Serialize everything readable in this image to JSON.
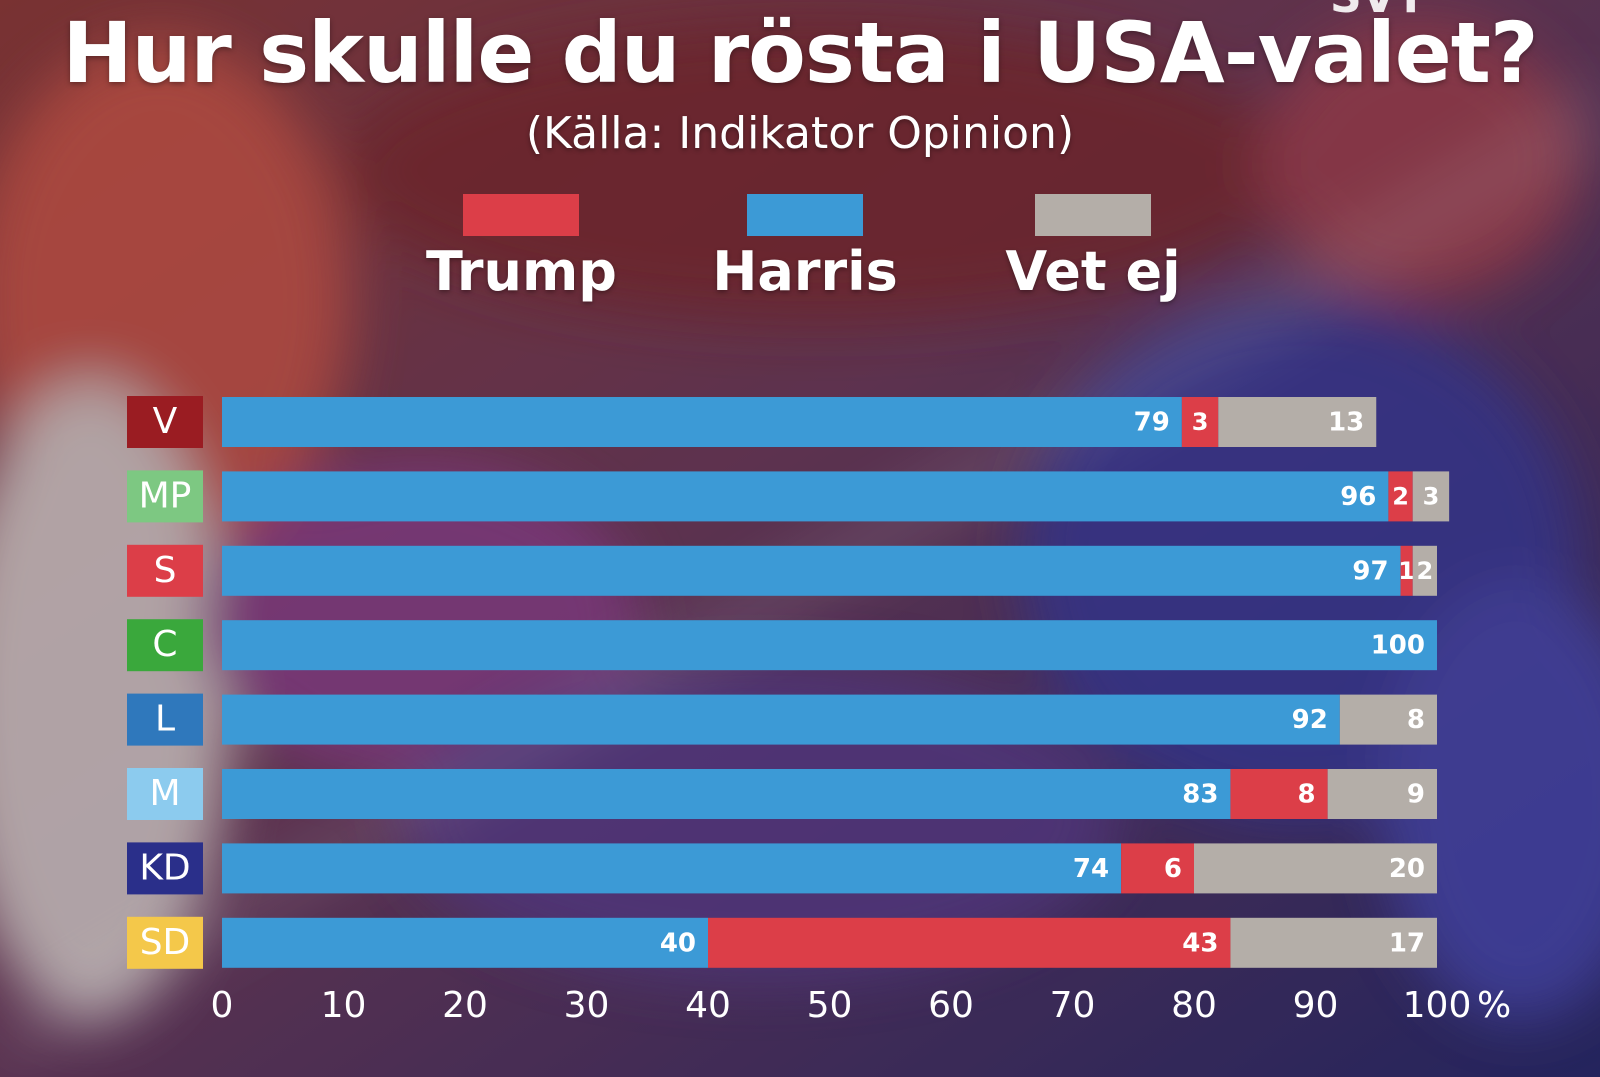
{
  "title": "Hur skulle du rösta i USA-valet?",
  "subtitle": "(Källa: Indikator Opinion)",
  "corner_text": "SVT",
  "colors": {
    "trump": "#dc3e48",
    "harris": "#3c9ad6",
    "vet_ej": "#b4aea8"
  },
  "legend": [
    {
      "label": "Trump",
      "color": "#dc3e48"
    },
    {
      "label": "Harris",
      "color": "#3c9ad6"
    },
    {
      "label": "Vet ej",
      "color": "#b4aea8"
    }
  ],
  "chart_data": {
    "type": "bar",
    "orientation": "horizontal",
    "stacked": true,
    "categories": [
      "V",
      "MP",
      "S",
      "C",
      "L",
      "M",
      "KD",
      "SD"
    ],
    "category_colors": [
      "#9a1c22",
      "#7dc882",
      "#dc3e48",
      "#3aa83c",
      "#2f78bc",
      "#8ccbee",
      "#2a2f8a",
      "#f4c84a"
    ],
    "category_text_colors": [
      "#ffffff",
      "#ffffff",
      "#ffffff",
      "#ffffff",
      "#ffffff",
      "#ffffff",
      "#ffffff",
      "#ffffff"
    ],
    "series": [
      {
        "name": "Harris",
        "values": [
          79,
          96,
          97,
          100,
          92,
          83,
          74,
          40
        ]
      },
      {
        "name": "Trump",
        "values": [
          3,
          2,
          1,
          0,
          0,
          8,
          6,
          43
        ]
      },
      {
        "name": "Vet ej",
        "values": [
          13,
          3,
          2,
          0,
          8,
          9,
          20,
          17
        ]
      }
    ],
    "xlim": [
      0,
      100
    ],
    "xticks": [
      0,
      10,
      20,
      30,
      40,
      50,
      60,
      70,
      80,
      90,
      100
    ],
    "xunit": "%",
    "legend_position": "top-center"
  }
}
